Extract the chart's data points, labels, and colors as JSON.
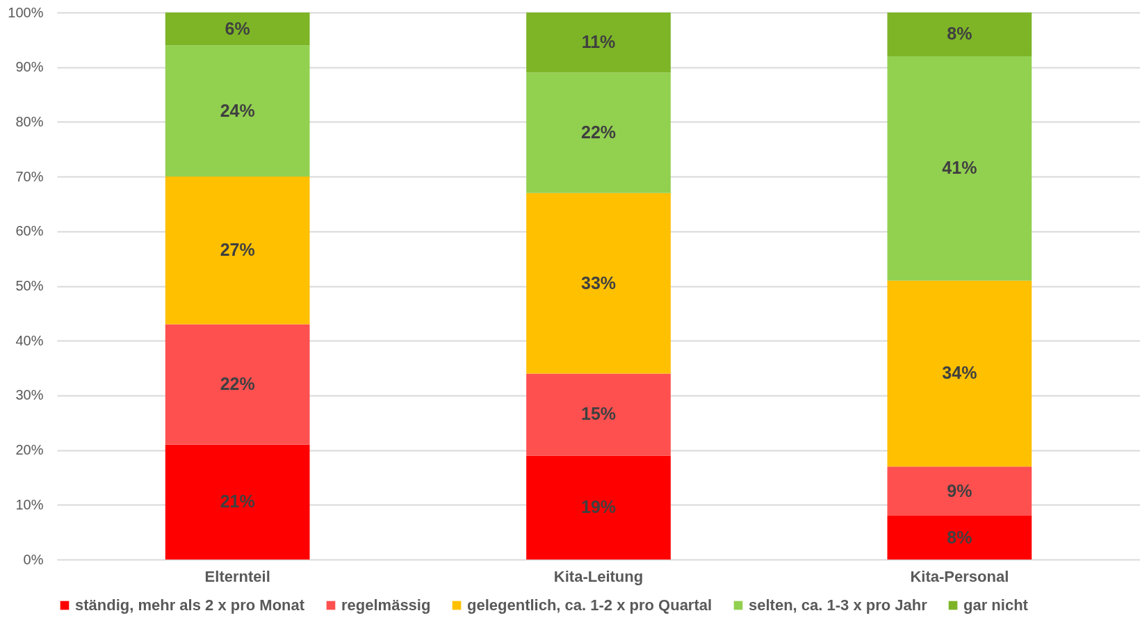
{
  "chart_data": {
    "type": "bar",
    "stacked": true,
    "categories": [
      "Elternteil",
      "Kita-Leitung",
      "Kita-Personal"
    ],
    "series": [
      {
        "name": "ständig, mehr als 2 x pro Monat",
        "color": "#ff0000",
        "values": [
          21,
          19,
          8
        ],
        "value_labels": [
          "21%",
          "19%",
          "8%"
        ]
      },
      {
        "name": "regelmässig",
        "color": "#ff5050",
        "values": [
          22,
          15,
          9
        ],
        "value_labels": [
          "22%",
          "15%",
          "9%"
        ]
      },
      {
        "name": "gelegentlich, ca. 1-2 x pro Quartal",
        "color": "#ffc000",
        "values": [
          27,
          33,
          34
        ],
        "value_labels": [
          "27%",
          "33%",
          "34%"
        ]
      },
      {
        "name": "selten, ca. 1-3 x pro Jahr",
        "color": "#92d050",
        "values": [
          24,
          22,
          41
        ],
        "value_labels": [
          "24%",
          "22%",
          "41%"
        ]
      },
      {
        "name": "gar nicht",
        "color": "#7db527",
        "values": [
          6,
          11,
          8
        ],
        "value_labels": [
          "6%",
          "11%",
          "8%"
        ]
      }
    ],
    "ylim": [
      0,
      100
    ],
    "yticks": [
      {
        "value": 0,
        "label": "0%"
      },
      {
        "value": 10,
        "label": "10%"
      },
      {
        "value": 20,
        "label": "20%"
      },
      {
        "value": 30,
        "label": "30%"
      },
      {
        "value": 40,
        "label": "40%"
      },
      {
        "value": 50,
        "label": "50%"
      },
      {
        "value": 60,
        "label": "60%"
      },
      {
        "value": 70,
        "label": "70%"
      },
      {
        "value": 80,
        "label": "80%"
      },
      {
        "value": 90,
        "label": "90%"
      },
      {
        "value": 100,
        "label": "100%"
      }
    ],
    "grid": "y",
    "legend": "bottom"
  }
}
